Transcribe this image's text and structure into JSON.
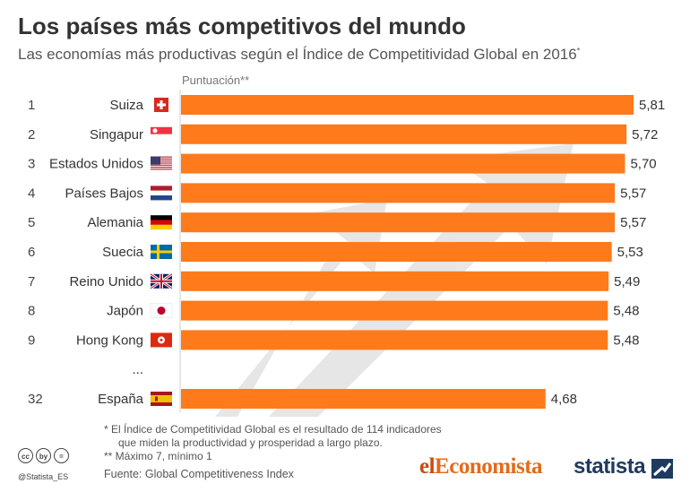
{
  "title": "Los países más competitivos del mundo",
  "subtitle": "Las economías más productivas según el Índice de Competitividad Global en 2016",
  "subtitle_mark": "*",
  "colors": {
    "bar": "#ff7a1a",
    "arrow": "#9e9e9e",
    "rank_text": "#444444"
  },
  "chart_data": {
    "type": "bar",
    "orientation": "horizontal",
    "value_header": "Puntuación**",
    "xlim": [
      0,
      5.81
    ],
    "rows": [
      {
        "rank": "1",
        "country": "Suiza",
        "flag": "switzerland-flag-icon",
        "value": 5.81,
        "value_label": "5,81"
      },
      {
        "rank": "2",
        "country": "Singapur",
        "flag": "singapore-flag-icon",
        "value": 5.72,
        "value_label": "5,72"
      },
      {
        "rank": "3",
        "country": "Estados Unidos",
        "flag": "usa-flag-icon",
        "value": 5.7,
        "value_label": "5,70"
      },
      {
        "rank": "4",
        "country": "Países Bajos",
        "flag": "netherlands-flag-icon",
        "value": 5.57,
        "value_label": "5,57"
      },
      {
        "rank": "5",
        "country": "Alemania",
        "flag": "germany-flag-icon",
        "value": 5.57,
        "value_label": "5,57"
      },
      {
        "rank": "6",
        "country": "Suecia",
        "flag": "sweden-flag-icon",
        "value": 5.53,
        "value_label": "5,53"
      },
      {
        "rank": "7",
        "country": "Reino Unido",
        "flag": "uk-flag-icon",
        "value": 5.49,
        "value_label": "5,49"
      },
      {
        "rank": "8",
        "country": "Japón",
        "flag": "japan-flag-icon",
        "value": 5.48,
        "value_label": "5,48"
      },
      {
        "rank": "9",
        "country": "Hong Kong",
        "flag": "hongkong-flag-icon",
        "value": 5.48,
        "value_label": "5,48"
      },
      {
        "rank": "",
        "country": "...",
        "flag": null,
        "value": null,
        "value_label": ""
      },
      {
        "rank": "32",
        "country": "España",
        "flag": "spain-flag-icon",
        "value": 4.68,
        "value_label": "4,68"
      }
    ]
  },
  "notes": {
    "line1": "*  El Índice de Competitividad Global es el resultado de 114 indicadores",
    "line2": "que miden la productividad y prosperidad a largo plazo.",
    "line3": "** Máximo 7, mínimo 1"
  },
  "source": "Fuente: Global Competitiveness Index",
  "footer": {
    "cc_icons": [
      "cc",
      "by",
      "="
    ],
    "handle": "@Statista_ES",
    "logo_el": "el",
    "logo_economista": "Economista",
    "logo_statista": "statista"
  }
}
